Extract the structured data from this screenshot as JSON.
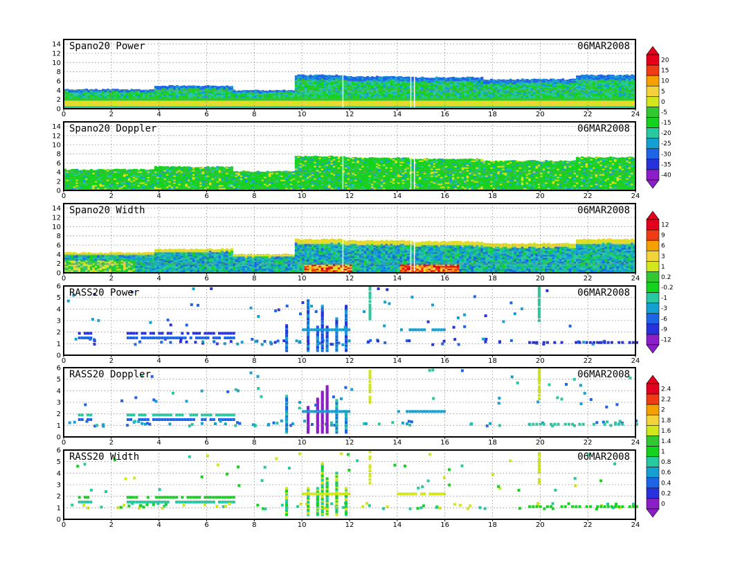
{
  "chart_data": [
    {
      "type": "heatmap",
      "title": "Spano20  Power",
      "date": "06MAR2008",
      "xlim": [
        0,
        24
      ],
      "ylim": [
        0,
        15
      ],
      "x_ticks": [
        0,
        2,
        4,
        6,
        8,
        10,
        12,
        14,
        16,
        18,
        20,
        22,
        24
      ],
      "y_ticks": [
        0,
        2,
        4,
        6,
        8,
        10,
        12,
        14
      ],
      "grid": true,
      "colorbar": {
        "labels": [
          "20",
          "15",
          "10",
          "5",
          "0",
          "-5",
          "-15",
          "-20",
          "-25",
          "-30",
          "-35",
          "-40"
        ]
      },
      "echo_top": [
        {
          "from": 0,
          "to": 3.8,
          "top": 4.2
        },
        {
          "from": 3.8,
          "to": 7,
          "top": 5.0
        },
        {
          "from": 7,
          "to": 9.6,
          "top": 4.0
        },
        {
          "from": 9.6,
          "to": 11.7,
          "top": 7.3
        },
        {
          "from": 11.7,
          "to": 14.5,
          "top": 7.0
        },
        {
          "from": 14.5,
          "to": 17.5,
          "top": 6.8
        },
        {
          "from": 17.5,
          "to": 21.5,
          "top": 6.4
        },
        {
          "from": 21.5,
          "to": 24,
          "top": 7.3
        }
      ]
    },
    {
      "type": "heatmap",
      "title": "Spano20  Doppler",
      "date": "06MAR2008",
      "xlim": [
        0,
        24
      ],
      "ylim": [
        0,
        15
      ],
      "x_ticks": [
        0,
        2,
        4,
        6,
        8,
        10,
        12,
        14,
        16,
        18,
        20,
        22,
        24
      ],
      "y_ticks": [
        0,
        2,
        4,
        6,
        8,
        10,
        12,
        14
      ],
      "grid": true,
      "echo_top": [
        {
          "from": 0,
          "to": 3.8,
          "top": 4.6
        },
        {
          "from": 3.8,
          "to": 7,
          "top": 5.2
        },
        {
          "from": 7,
          "to": 9.6,
          "top": 4.2
        },
        {
          "from": 9.6,
          "to": 11.7,
          "top": 7.5
        },
        {
          "from": 11.7,
          "to": 14.5,
          "top": 7.2
        },
        {
          "from": 14.5,
          "to": 17.5,
          "top": 6.9
        },
        {
          "from": 17.5,
          "to": 21.5,
          "top": 6.5
        },
        {
          "from": 21.5,
          "to": 24,
          "top": 7.3
        }
      ]
    },
    {
      "type": "heatmap",
      "title": "Spano20  Width",
      "date": "06MAR2008",
      "xlim": [
        0,
        24
      ],
      "ylim": [
        0,
        15
      ],
      "x_ticks": [
        0,
        2,
        4,
        6,
        8,
        10,
        12,
        14,
        16,
        18,
        20,
        22,
        24
      ],
      "y_ticks": [
        0,
        2,
        4,
        6,
        8,
        10,
        12,
        14
      ],
      "grid": true,
      "colorbar": {
        "labels": [
          "12",
          "9",
          "6",
          "3",
          "1",
          "0.2",
          "-0.2",
          "-1",
          "-3",
          "-6",
          "-9",
          "-12"
        ]
      },
      "echo_top": [
        {
          "from": 0,
          "to": 3.8,
          "top": 4.4
        },
        {
          "from": 3.8,
          "to": 7,
          "top": 5.2
        },
        {
          "from": 7,
          "to": 9.6,
          "top": 4.0
        },
        {
          "from": 9.6,
          "to": 11.7,
          "top": 7.3
        },
        {
          "from": 11.7,
          "to": 14.5,
          "top": 7.0
        },
        {
          "from": 14.5,
          "to": 17.5,
          "top": 6.8
        },
        {
          "from": 17.5,
          "to": 21.5,
          "top": 6.4
        },
        {
          "from": 21.5,
          "to": 24,
          "top": 7.3
        }
      ]
    },
    {
      "type": "scatter",
      "title": "RASS20  Power",
      "date": "06MAR2008",
      "xlim": [
        0,
        24
      ],
      "ylim": [
        0,
        6
      ],
      "x_ticks": [
        0,
        2,
        4,
        6,
        8,
        10,
        12,
        14,
        16,
        18,
        20,
        22,
        24
      ],
      "y_ticks": [
        0,
        1,
        2,
        3,
        4,
        5,
        6
      ],
      "grid": true
    },
    {
      "type": "scatter",
      "title": "RASS20  Doppler",
      "date": "06MAR2008",
      "xlim": [
        0,
        24
      ],
      "ylim": [
        0,
        6
      ],
      "x_ticks": [
        0,
        2,
        4,
        6,
        8,
        10,
        12,
        14,
        16,
        18,
        20,
        22,
        24
      ],
      "y_ticks": [
        0,
        1,
        2,
        3,
        4,
        5,
        6
      ],
      "grid": true,
      "colorbar": {
        "labels": [
          "2.4",
          "2.2",
          "2",
          "1.8",
          "1.6",
          "1.4",
          "1",
          "0.8",
          "0.6",
          "0.4",
          "0.2",
          "0"
        ]
      }
    },
    {
      "type": "scatter",
      "title": "RASS20  Width",
      "date": "06MAR2008",
      "xlim": [
        0,
        24
      ],
      "ylim": [
        0,
        6
      ],
      "x_ticks": [
        0,
        2,
        4,
        6,
        8,
        10,
        12,
        14,
        16,
        18,
        20,
        22,
        24
      ],
      "y_ticks": [
        0,
        1,
        2,
        3,
        4,
        5,
        6
      ],
      "grid": true
    }
  ],
  "colors": {
    "scale": [
      "#e4001c",
      "#f03c14",
      "#f4a000",
      "#f4d23c",
      "#d2e61e",
      "#32c832",
      "#14d21e",
      "#28c8a0",
      "#14a0d2",
      "#1e64e6",
      "#2832dc",
      "#8c1ec8"
    ],
    "frame": "#000000"
  }
}
